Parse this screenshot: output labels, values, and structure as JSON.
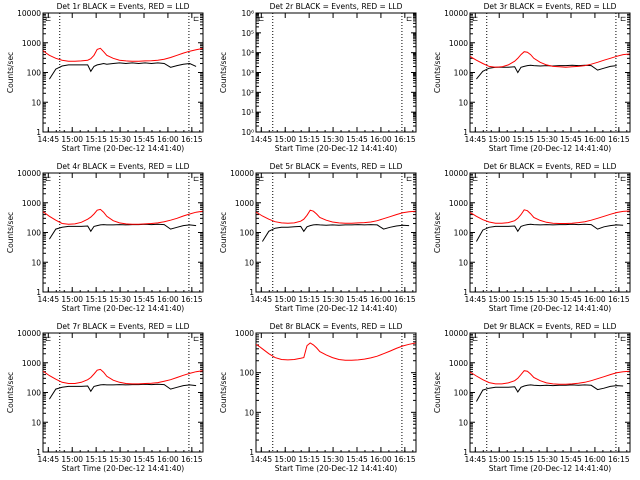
{
  "colors": {
    "events": "#000000",
    "lld": "#ff0000",
    "axis": "#000000",
    "background": "#ffffff"
  },
  "common": {
    "ylabel": "Counts/sec",
    "xlabel": "Start Time (20-Dec-12 14:41:40)",
    "x_ticks": [
      "14:45",
      "15:00",
      "15:15",
      "15:30",
      "15:45",
      "16:00",
      "16:15"
    ],
    "x_range": [
      "14:41:40",
      "16:22:00"
    ],
    "x_tick_minutes": [
      3.33,
      18.33,
      33.33,
      48.33,
      63.33,
      78.33,
      93.33
    ],
    "x_range_minutes": [
      0,
      100.33
    ],
    "dotted_lines_minutes": [
      10.5,
      91.5
    ]
  },
  "chart_data": [
    {
      "type": "line",
      "title": "Det 1r BLACK = Events, RED = LLD",
      "marker": "⊏",
      "y_scale": "log",
      "ylim": [
        1,
        10000
      ],
      "y_ticks": [
        "1",
        "10",
        "100",
        "1000",
        "10000"
      ],
      "x": [
        0,
        2,
        4,
        8,
        12,
        16,
        20,
        24,
        28,
        30,
        32,
        34,
        36,
        38,
        40,
        44,
        48,
        52,
        56,
        60,
        64,
        68,
        72,
        76,
        80,
        84,
        88,
        92,
        96,
        100
      ],
      "series": [
        {
          "name": "BLACK = Events",
          "color": "black",
          "values": [
            null,
            null,
            60,
            130,
            165,
            180,
            180,
            180,
            180,
            110,
            160,
            180,
            190,
            200,
            190,
            200,
            210,
            200,
            210,
            200,
            210,
            200,
            210,
            200,
            150,
            170,
            190,
            200,
            160,
            null
          ]
        },
        {
          "name": "RED = LLD",
          "color": "red",
          "values": [
            550,
            450,
            380,
            300,
            260,
            240,
            240,
            245,
            260,
            290,
            380,
            600,
            650,
            500,
            380,
            300,
            260,
            245,
            240,
            240,
            245,
            250,
            260,
            280,
            320,
            380,
            450,
            520,
            580,
            640
          ]
        }
      ]
    },
    {
      "type": "line",
      "title": "Det 2r BLACK = Events, RED = LLD",
      "marker": "⊏",
      "y_scale": "log",
      "ylim": [
        1,
        1000000
      ],
      "y_ticks": [
        "10⁰",
        "10¹",
        "10²",
        "10³",
        "10⁴",
        "10⁵",
        "10⁶"
      ],
      "x": [],
      "series": []
    },
    {
      "type": "line",
      "title": "Det 3r BLACK = Events, RED = LLD",
      "marker": "⊏",
      "y_scale": "log",
      "ylim": [
        1,
        10000
      ],
      "y_ticks": [
        "1",
        "10",
        "100",
        "1000",
        "10000"
      ],
      "x": [
        0,
        2,
        4,
        8,
        12,
        16,
        20,
        24,
        28,
        30,
        32,
        34,
        36,
        38,
        40,
        44,
        48,
        52,
        56,
        60,
        64,
        68,
        72,
        76,
        80,
        84,
        88,
        92,
        96,
        100
      ],
      "series": [
        {
          "name": "BLACK = Events",
          "color": "black",
          "values": [
            null,
            null,
            60,
            110,
            140,
            150,
            150,
            150,
            155,
            100,
            150,
            160,
            170,
            175,
            170,
            165,
            170,
            165,
            170,
            170,
            175,
            170,
            175,
            170,
            120,
            140,
            160,
            170,
            null,
            null
          ]
        },
        {
          "name": "RED = LLD",
          "color": "red",
          "values": [
            350,
            300,
            260,
            200,
            160,
            150,
            155,
            180,
            240,
            300,
            400,
            500,
            480,
            400,
            300,
            220,
            180,
            160,
            155,
            150,
            155,
            160,
            170,
            190,
            220,
            260,
            300,
            350,
            400,
            420
          ]
        }
      ]
    },
    {
      "type": "line",
      "title": "Det 4r BLACK = Events, RED = LLD",
      "marker": "⊏",
      "y_scale": "log",
      "ylim": [
        1,
        10000
      ],
      "y_ticks": [
        "1",
        "10",
        "100",
        "1000",
        "10000"
      ],
      "x": [
        0,
        2,
        4,
        8,
        12,
        16,
        20,
        24,
        28,
        30,
        32,
        34,
        36,
        38,
        40,
        44,
        48,
        52,
        56,
        60,
        64,
        68,
        72,
        76,
        80,
        84,
        88,
        92,
        96,
        100
      ],
      "series": [
        {
          "name": "BLACK = Events",
          "color": "black",
          "values": [
            null,
            null,
            60,
            130,
            150,
            160,
            160,
            160,
            165,
            110,
            160,
            170,
            180,
            185,
            180,
            180,
            185,
            180,
            185,
            185,
            190,
            185,
            190,
            185,
            130,
            150,
            170,
            180,
            170,
            null
          ]
        },
        {
          "name": "RED = LLD",
          "color": "red",
          "values": [
            500,
            420,
            350,
            260,
            200,
            190,
            195,
            220,
            280,
            330,
            420,
            560,
            600,
            480,
            350,
            250,
            210,
            195,
            190,
            190,
            195,
            200,
            210,
            230,
            260,
            300,
            360,
            420,
            480,
            520
          ]
        }
      ]
    },
    {
      "type": "line",
      "title": "Det 5r BLACK = Events, RED = LLD",
      "marker": "⊏",
      "y_scale": "log",
      "ylim": [
        1,
        10000
      ],
      "y_ticks": [
        "1",
        "10",
        "100",
        "1000",
        "10000"
      ],
      "x": [
        0,
        2,
        4,
        8,
        12,
        16,
        20,
        24,
        28,
        30,
        32,
        34,
        36,
        38,
        40,
        44,
        48,
        52,
        56,
        60,
        64,
        68,
        72,
        76,
        80,
        84,
        88,
        92,
        96,
        100
      ],
      "series": [
        {
          "name": "BLACK = Events",
          "color": "black",
          "values": [
            null,
            null,
            50,
            110,
            140,
            150,
            150,
            155,
            160,
            110,
            155,
            170,
            180,
            185,
            180,
            175,
            180,
            175,
            180,
            180,
            185,
            180,
            185,
            180,
            130,
            150,
            165,
            175,
            170,
            null
          ]
        },
        {
          "name": "RED = LLD",
          "color": "red",
          "values": [
            480,
            420,
            360,
            280,
            230,
            210,
            205,
            210,
            240,
            280,
            380,
            560,
            520,
            420,
            320,
            260,
            225,
            210,
            205,
            205,
            210,
            215,
            225,
            250,
            290,
            340,
            400,
            460,
            500,
            520
          ]
        }
      ]
    },
    {
      "type": "line",
      "title": "Det 6r BLACK = Events, RED = LLD",
      "marker": "⊏",
      "y_scale": "log",
      "ylim": [
        1,
        10000
      ],
      "y_ticks": [
        "1",
        "10",
        "100",
        "1000",
        "10000"
      ],
      "x": [
        0,
        2,
        4,
        8,
        12,
        16,
        20,
        24,
        28,
        30,
        32,
        34,
        36,
        38,
        40,
        44,
        48,
        52,
        56,
        60,
        64,
        68,
        72,
        76,
        80,
        84,
        88,
        92,
        96,
        100
      ],
      "series": [
        {
          "name": "BLACK = Events",
          "color": "black",
          "values": [
            null,
            null,
            50,
            120,
            150,
            160,
            160,
            160,
            165,
            110,
            160,
            175,
            185,
            190,
            185,
            180,
            185,
            180,
            185,
            185,
            190,
            185,
            190,
            185,
            130,
            155,
            170,
            180,
            175,
            null
          ]
        },
        {
          "name": "RED = LLD",
          "color": "red",
          "values": [
            470,
            410,
            350,
            270,
            225,
            205,
            205,
            215,
            250,
            300,
            400,
            580,
            540,
            430,
            320,
            255,
            220,
            205,
            200,
            200,
            205,
            215,
            230,
            260,
            300,
            350,
            410,
            470,
            510,
            530
          ]
        }
      ]
    },
    {
      "type": "line",
      "title": "Det 7r BLACK = Events, RED = LLD",
      "marker": "⊏",
      "y_scale": "log",
      "ylim": [
        1,
        10000
      ],
      "y_ticks": [
        "1",
        "10",
        "100",
        "1000",
        "10000"
      ],
      "x": [
        0,
        2,
        4,
        8,
        12,
        16,
        20,
        24,
        28,
        30,
        32,
        34,
        36,
        38,
        40,
        44,
        48,
        52,
        56,
        60,
        64,
        68,
        72,
        76,
        80,
        84,
        88,
        92,
        96,
        100
      ],
      "series": [
        {
          "name": "BLACK = Events",
          "color": "black",
          "values": [
            null,
            null,
            60,
            130,
            150,
            160,
            160,
            160,
            165,
            110,
            160,
            170,
            180,
            185,
            180,
            180,
            185,
            180,
            185,
            185,
            190,
            185,
            190,
            185,
            130,
            150,
            170,
            180,
            170,
            null
          ]
        },
        {
          "name": "RED = LLD",
          "color": "red",
          "values": [
            520,
            440,
            370,
            280,
            220,
            200,
            200,
            220,
            270,
            320,
            420,
            560,
            600,
            480,
            350,
            260,
            220,
            200,
            195,
            195,
            200,
            205,
            215,
            240,
            270,
            320,
            380,
            440,
            500,
            540
          ]
        }
      ]
    },
    {
      "type": "line",
      "title": "Det 8r BLACK = Events, RED = LLD",
      "marker": "",
      "y_scale": "log",
      "ylim": [
        1,
        1000
      ],
      "y_ticks": [
        "1",
        "10",
        "100",
        "1000"
      ],
      "x": [
        0,
        2,
        4,
        8,
        12,
        16,
        20,
        24,
        28,
        30,
        32,
        34,
        36,
        38,
        40,
        44,
        48,
        52,
        56,
        60,
        64,
        68,
        72,
        76,
        80,
        84,
        88,
        92,
        96,
        100
      ],
      "series": [
        {
          "name": "RED = LLD",
          "color": "red",
          "values": [
            520,
            460,
            400,
            300,
            240,
            215,
            210,
            215,
            230,
            240,
            480,
            560,
            500,
            420,
            340,
            280,
            240,
            215,
            205,
            205,
            210,
            220,
            235,
            260,
            300,
            350,
            410,
            470,
            520,
            560
          ]
        }
      ]
    },
    {
      "type": "line",
      "title": "Det 9r BLACK = Events, RED = LLD",
      "marker": "⊏",
      "y_scale": "log",
      "ylim": [
        1,
        10000
      ],
      "y_ticks": [
        "1",
        "10",
        "100",
        "1000",
        "10000"
      ],
      "x": [
        0,
        2,
        4,
        8,
        12,
        16,
        20,
        24,
        28,
        30,
        32,
        34,
        36,
        38,
        40,
        44,
        48,
        52,
        56,
        60,
        64,
        68,
        72,
        76,
        80,
        84,
        88,
        92,
        96,
        100
      ],
      "series": [
        {
          "name": "BLACK = Events",
          "color": "black",
          "values": [
            null,
            null,
            50,
            120,
            140,
            150,
            150,
            150,
            155,
            105,
            150,
            165,
            175,
            180,
            175,
            170,
            175,
            170,
            175,
            175,
            180,
            175,
            180,
            175,
            125,
            140,
            160,
            170,
            165,
            null
          ]
        },
        {
          "name": "RED = LLD",
          "color": "red",
          "values": [
            480,
            420,
            360,
            270,
            215,
            195,
            195,
            210,
            250,
            300,
            400,
            540,
            520,
            420,
            320,
            250,
            210,
            195,
            190,
            190,
            195,
            205,
            220,
            250,
            290,
            340,
            400,
            460,
            500,
            520
          ]
        }
      ]
    }
  ]
}
